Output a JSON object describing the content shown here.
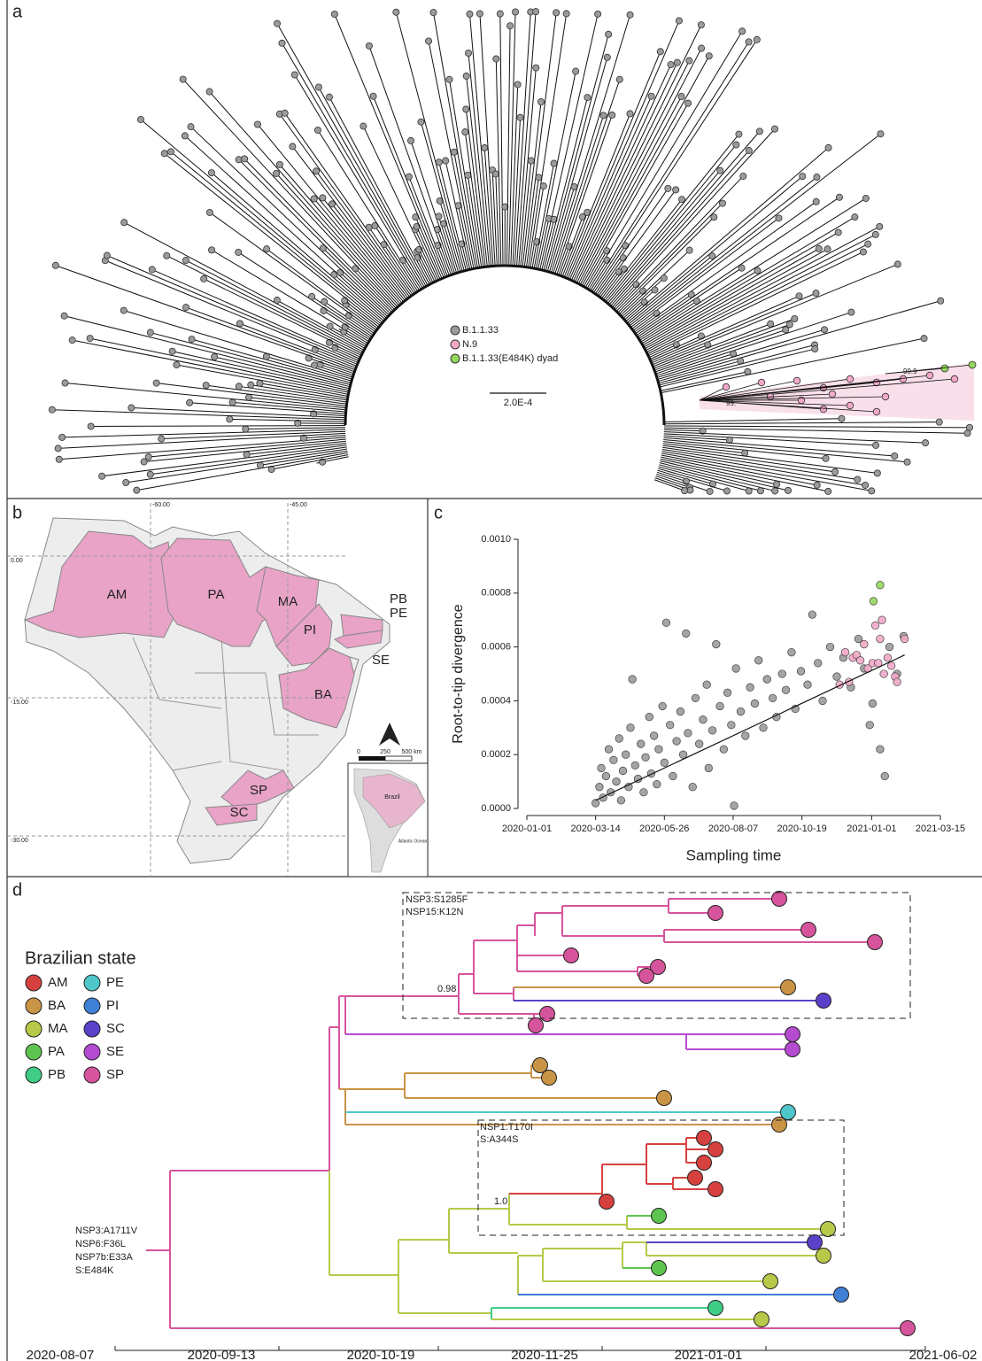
{
  "panel_labels": [
    "a",
    "b",
    "c",
    "d"
  ],
  "tree": {
    "scale_label": "2.0E-4",
    "support_labels": [
      "99.9",
      "99."
    ]
  },
  "map": {
    "states": [
      {
        "label": "AM"
      },
      {
        "label": "PA"
      },
      {
        "label": "MA"
      },
      {
        "label": "PI"
      },
      {
        "label": "PB"
      },
      {
        "label": "PE"
      },
      {
        "label": "SE"
      },
      {
        "label": "BA"
      },
      {
        "label": "SP"
      },
      {
        "label": "SC"
      }
    ],
    "longitudes": [
      "-60.00",
      "-45.00"
    ],
    "latitudes": [
      "0.00",
      "-15.00",
      "-30.00"
    ],
    "scale": [
      "0",
      "250",
      "500 km"
    ],
    "inset": [
      "Brazil",
      "Atlantic Ocean"
    ]
  },
  "chart_data": {
    "type": "scatter",
    "x_label": "Sampling time",
    "y_label": "Root-to-tip divergence",
    "xlim": [
      "2020-01-01",
      "2021-03-15"
    ],
    "xticks": [
      "2020-01-01",
      "2020-03-14",
      "2020-05-26",
      "2020-08-07",
      "2020-10-19",
      "2021-01-01",
      "2021-03-15"
    ],
    "ylim": [
      0,
      0.001
    ],
    "yticks": [
      {
        "value": 0,
        "label": "0.0000"
      },
      {
        "value": 0.0002,
        "label": "0.0002"
      },
      {
        "value": 0.0004,
        "label": "0.0004"
      },
      {
        "value": 0.0006,
        "label": "0.0006"
      },
      {
        "value": 0.0008,
        "label": "0.0008"
      },
      {
        "value": 0.001,
        "label": "0.0010"
      }
    ],
    "series": [
      {
        "name": "B.1.1.33",
        "color": "#9b9b9b",
        "x": [
          "2020-03-14",
          "2020-03-18",
          "2020-03-20",
          "2020-03-22",
          "2020-03-25",
          "2020-03-28",
          "2020-03-30",
          "2020-04-02",
          "2020-04-05",
          "2020-04-08",
          "2020-04-10",
          "2020-04-12",
          "2020-04-15",
          "2020-04-18",
          "2020-04-20",
          "2020-04-22",
          "2020-04-25",
          "2020-04-28",
          "2020-05-01",
          "2020-05-04",
          "2020-05-06",
          "2020-05-10",
          "2020-05-12",
          "2020-05-15",
          "2020-05-18",
          "2020-05-20",
          "2020-05-24",
          "2020-05-26",
          "2020-05-28",
          "2020-06-01",
          "2020-06-04",
          "2020-06-08",
          "2020-06-12",
          "2020-06-15",
          "2020-06-18",
          "2020-06-20",
          "2020-06-25",
          "2020-06-28",
          "2020-07-02",
          "2020-07-06",
          "2020-07-10",
          "2020-07-12",
          "2020-07-16",
          "2020-07-20",
          "2020-07-24",
          "2020-07-28",
          "2020-08-01",
          "2020-08-05",
          "2020-08-08",
          "2020-08-10",
          "2020-08-15",
          "2020-08-20",
          "2020-08-25",
          "2020-08-30",
          "2020-09-03",
          "2020-09-08",
          "2020-09-12",
          "2020-09-18",
          "2020-09-22",
          "2020-09-28",
          "2020-10-02",
          "2020-10-08",
          "2020-10-12",
          "2020-10-18",
          "2020-10-25",
          "2020-10-30",
          "2020-11-05",
          "2020-11-10",
          "2020-11-18",
          "2020-11-25",
          "2020-12-02",
          "2020-12-10",
          "2020-12-18",
          "2020-12-24",
          "2020-12-30",
          "2021-01-02",
          "2021-01-10",
          "2021-01-15",
          "2021-01-20",
          "2021-01-28",
          "2021-02-04"
        ],
        "values": [
          2e-05,
          8e-05,
          0.00015,
          4e-05,
          0.00012,
          0.00022,
          6e-05,
          0.00018,
          0.0001,
          0.00026,
          3e-05,
          0.00014,
          0.0002,
          8e-05,
          0.0003,
          0.00048,
          0.00016,
          0.00011,
          0.00024,
          6e-05,
          0.00019,
          0.00034,
          0.00013,
          0.00027,
          9e-05,
          0.00022,
          0.00038,
          0.00017,
          0.00069,
          0.00031,
          0.00012,
          0.00025,
          0.00036,
          0.0002,
          0.00065,
          0.00028,
          8e-05,
          0.00041,
          0.00024,
          0.00033,
          0.00046,
          0.00015,
          0.00029,
          0.00061,
          0.00038,
          0.00022,
          0.00043,
          0.00031,
          1e-05,
          0.00052,
          0.00036,
          0.00027,
          0.00045,
          0.00039,
          0.00055,
          0.0003,
          0.00048,
          0.00041,
          0.00034,
          0.0005,
          0.00044,
          0.00058,
          0.00037,
          0.00051,
          0.00046,
          0.00072,
          0.00054,
          0.0004,
          0.0006,
          0.00049,
          0.00056,
          0.00045,
          0.00063,
          0.00052,
          0.00031,
          0.00039,
          0.00022,
          0.00012,
          0.0006,
          0.0005,
          0.00064
        ]
      },
      {
        "name": "N.9",
        "color": "#f2a9c9",
        "x": [
          "2020-11-28",
          "2020-12-04",
          "2020-12-08",
          "2020-12-12",
          "2020-12-16",
          "2020-12-20",
          "2020-12-24",
          "2020-12-28",
          "2021-01-02",
          "2021-01-05",
          "2021-01-08",
          "2021-01-10",
          "2021-01-12",
          "2021-01-14",
          "2021-01-18",
          "2021-01-22",
          "2021-01-26",
          "2021-01-28",
          "2021-02-05"
        ],
        "values": [
          0.00046,
          0.00058,
          0.00047,
          0.00056,
          0.00057,
          0.00055,
          0.00061,
          0.00052,
          0.00054,
          0.00068,
          0.00054,
          0.00063,
          0.0007,
          0.0005,
          0.00056,
          0.00053,
          0.00049,
          0.00047,
          0.00063
        ]
      },
      {
        "name": "B.1.1.33(E484K) dyad",
        "color": "#93d65c",
        "x": [
          "2021-01-03",
          "2021-01-10"
        ],
        "values": [
          0.00077,
          0.00083
        ]
      }
    ],
    "trendline": {
      "x": [
        "2020-03-14",
        "2021-02-05"
      ],
      "values": [
        3e-05,
        0.00057
      ]
    }
  },
  "timetree": {
    "legend_title": "Brazilian state",
    "states": [
      {
        "name": "AM",
        "color": "#d6413f"
      },
      {
        "name": "BA",
        "color": "#c99446"
      },
      {
        "name": "MA",
        "color": "#b8c94a"
      },
      {
        "name": "PA",
        "color": "#5ec450"
      },
      {
        "name": "PB",
        "color": "#3fcd86"
      },
      {
        "name": "PE",
        "color": "#4fc6c9"
      },
      {
        "name": "PI",
        "color": "#3f7fd4"
      },
      {
        "name": "SC",
        "color": "#5b41c9"
      },
      {
        "name": "SE",
        "color": "#b54bd0"
      },
      {
        "name": "SP",
        "color": "#d6549b"
      }
    ],
    "annotations": [
      "NSP3:S1285F",
      "NSP15:K12N",
      "NSP1:T170I",
      "S:A344S",
      "NSP3:A1711V",
      "NSP6:F36L",
      "NSP7b:E33A",
      "S:E484K"
    ],
    "supports": [
      "0.98",
      "1.0"
    ],
    "xticks": [
      "2020-08-07",
      "2020-09-13",
      "2020-10-19",
      "2020-11-25",
      "2021-01-01",
      "2021-06-02"
    ]
  }
}
